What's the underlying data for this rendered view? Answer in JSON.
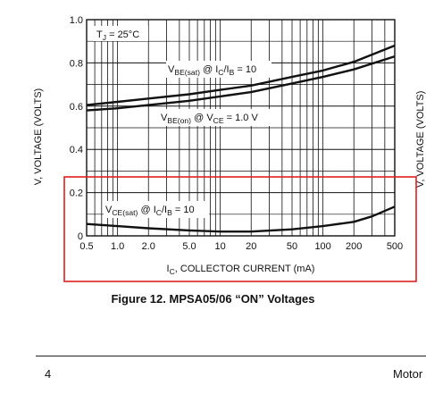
{
  "chart_data": {
    "type": "line",
    "xlabel": "I_C, COLLECTOR CURRENT (mA)",
    "xlabel_parts": {
      "sym": "I",
      "sub": "C",
      "rest": ", COLLECTOR CURRENT (mA)"
    },
    "ylabel": "V, VOLTAGE (VOLTS)",
    "right_ylabel_fragment": "V, VOLTAGE (VOLTS)",
    "x_scale": "log",
    "xlim": [
      0.5,
      500
    ],
    "ylim": [
      0,
      1.0
    ],
    "grid": true,
    "x_ticks": [
      0.5,
      1.0,
      2.0,
      5.0,
      10,
      20,
      50,
      100,
      200,
      500
    ],
    "x_tick_labels": [
      "0.5",
      "1.0",
      "2.0",
      "5.0",
      "10",
      "20",
      "50",
      "100",
      "200",
      "500"
    ],
    "y_ticks": [
      0,
      0.2,
      0.4,
      0.6,
      0.8,
      1.0
    ],
    "y_tick_labels": [
      "0",
      "0.2",
      "0.4",
      "0.6",
      "0.8",
      "1.0"
    ],
    "annotation": {
      "text": "T_J = 25°C",
      "sym": "T",
      "sub": "J",
      "rest": " = 25°C"
    },
    "series": [
      {
        "name": "V_BE(sat) @ I_C/I_B = 10",
        "label_parts": [
          [
            "V",
            ""
          ],
          [
            "BE(sat)",
            "sub"
          ],
          [
            " @ I",
            ""
          ],
          [
            "C",
            "sub"
          ],
          [
            "/I",
            ""
          ],
          [
            "B",
            "sub"
          ],
          [
            " = 10",
            ""
          ]
        ],
        "x": [
          0.5,
          1,
          2,
          5,
          10,
          20,
          50,
          100,
          200,
          500
        ],
        "y": [
          0.605,
          0.62,
          0.635,
          0.655,
          0.675,
          0.695,
          0.735,
          0.765,
          0.805,
          0.88
        ]
      },
      {
        "name": "V_BE(on) @ V_CE = 1.0 V",
        "label_parts": [
          [
            "V",
            ""
          ],
          [
            "BE(on)",
            "sub"
          ],
          [
            " @ V",
            ""
          ],
          [
            "CE",
            "sub"
          ],
          [
            " = 1.0 V",
            ""
          ]
        ],
        "x": [
          0.5,
          1,
          2,
          5,
          10,
          20,
          50,
          100,
          200,
          500
        ],
        "y": [
          0.58,
          0.59,
          0.605,
          0.625,
          0.645,
          0.665,
          0.705,
          0.735,
          0.77,
          0.83
        ]
      },
      {
        "name": "V_CE(sat) @ I_C/I_B = 10",
        "label_parts": [
          [
            "V",
            ""
          ],
          [
            "CE(sat)",
            "sub"
          ],
          [
            " @ I",
            ""
          ],
          [
            "C",
            "sub"
          ],
          [
            "/I",
            ""
          ],
          [
            "B",
            "sub"
          ],
          [
            " = 10",
            ""
          ]
        ],
        "x": [
          0.5,
          1,
          2,
          5,
          10,
          20,
          50,
          100,
          200,
          300,
          500
        ],
        "y": [
          0.055,
          0.045,
          0.035,
          0.025,
          0.02,
          0.02,
          0.03,
          0.045,
          0.065,
          0.09,
          0.135
        ]
      }
    ],
    "highlight_box_color": "#e02020"
  },
  "caption": "Figure 12. MPSA05/06 “ON” Voltages",
  "page_number": "4",
  "footer_text": "Motor"
}
